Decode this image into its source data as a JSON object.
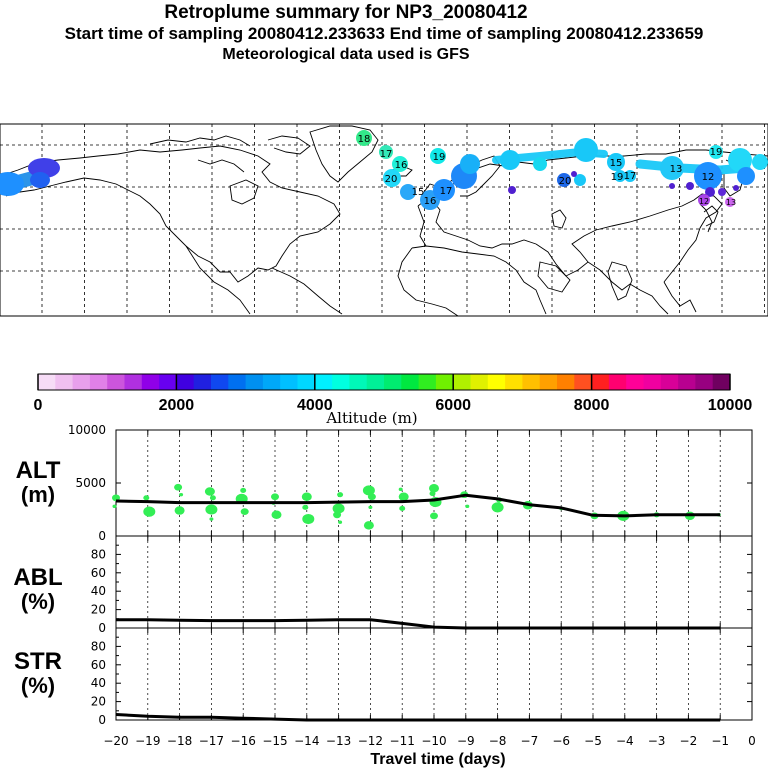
{
  "header": {
    "title": "Retroplume summary for NP3_20080412",
    "sampling_line": "Start time of sampling 20080412.233633     End time of sampling 20080412.233659",
    "met_line": "Meteorological data used is GFS"
  },
  "colorbar": {
    "label": "Altitude (m)",
    "ticks": [
      "0",
      "2000",
      "4000",
      "6000",
      "8000",
      "10000"
    ],
    "colors": [
      "#f6dcf6",
      "#f0c0f0",
      "#e8a0ec",
      "#e080e8",
      "#cc55dd",
      "#b030e0",
      "#9000e8",
      "#6800f0",
      "#4000e0",
      "#2020e0",
      "#1048f0",
      "#0070f0",
      "#0090f0",
      "#00a8f8",
      "#00c0ff",
      "#00d8ff",
      "#00f0ff",
      "#00ffe0",
      "#00f8b8",
      "#00f098",
      "#00ec70",
      "#00e840",
      "#30ee20",
      "#70f000",
      "#b0f000",
      "#e0f000",
      "#ffff00",
      "#ffe000",
      "#ffc000",
      "#ffa000",
      "#ff8000",
      "#ff5020",
      "#ff2020",
      "#ff0070",
      "#ff0098",
      "#f000a0",
      "#d80098",
      "#b80090",
      "#980080",
      "#700060"
    ]
  },
  "map": {
    "particle_labels": [
      {
        "text": "18",
        "color": "#3ae88a"
      },
      {
        "text": "17",
        "color": "#33e8b0"
      },
      {
        "text": "16",
        "color": "#22f0d0"
      },
      {
        "text": "19",
        "color": "#11e8e8"
      },
      {
        "text": "20",
        "color": "#22d8f8"
      },
      {
        "text": "15",
        "color": "#2288f0"
      },
      {
        "text": "17",
        "color": "#1e90ff"
      },
      {
        "text": "16",
        "color": "#30a0f8"
      },
      {
        "text": "20",
        "color": "#1e68e8"
      },
      {
        "text": "15",
        "color": "#18c8f8"
      },
      {
        "text": "19",
        "color": "#18c8f8"
      },
      {
        "text": "17",
        "color": "#18c8f8"
      },
      {
        "text": "13",
        "color": "#22d8f8"
      },
      {
        "text": "12",
        "color": "#22d8f8"
      },
      {
        "text": "19",
        "color": "#22e8f0"
      },
      {
        "text": "12",
        "color": "#aa44e8"
      },
      {
        "text": "13",
        "color": "#cc66ee"
      }
    ]
  },
  "chart_data": [
    {
      "type": "line",
      "panel": "ALT",
      "ylabel": "ALT\n(m)",
      "ylabel_line1": "ALT",
      "ylabel_line2": "(m)",
      "ylim": [
        0,
        10000
      ],
      "yticks": [
        "0",
        "5000",
        "10000"
      ],
      "xlim": [
        -20,
        0
      ],
      "x": [
        -20,
        -19,
        -18,
        -17,
        -16,
        -15,
        -14,
        -13,
        -12,
        -11,
        -10,
        -9,
        -8,
        -7,
        -6,
        -5,
        -4,
        -3,
        -2,
        -1
      ],
      "values": [
        3300,
        3250,
        3150,
        3150,
        3150,
        3150,
        3150,
        3200,
        3250,
        3250,
        3400,
        3850,
        3500,
        2950,
        2650,
        1950,
        1900,
        2000,
        2000,
        2000
      ],
      "scatter_points": [
        {
          "x": -20,
          "y": 2800
        },
        {
          "x": -20,
          "y": 3600
        },
        {
          "x": -19,
          "y": 2300
        },
        {
          "x": -19,
          "y": 3600
        },
        {
          "x": -18,
          "y": 2400
        },
        {
          "x": -18,
          "y": 3900
        },
        {
          "x": -18,
          "y": 4600
        },
        {
          "x": -17,
          "y": 2500
        },
        {
          "x": -17,
          "y": 3600
        },
        {
          "x": -17,
          "y": 4200
        },
        {
          "x": -17,
          "y": 1600
        },
        {
          "x": -16,
          "y": 2300
        },
        {
          "x": -16,
          "y": 3500
        },
        {
          "x": -16,
          "y": 4300
        },
        {
          "x": -15,
          "y": 2000
        },
        {
          "x": -15,
          "y": 3100
        },
        {
          "x": -15,
          "y": 3700
        },
        {
          "x": -14,
          "y": 1600
        },
        {
          "x": -14,
          "y": 2700
        },
        {
          "x": -14,
          "y": 3700
        },
        {
          "x": -13,
          "y": 1300
        },
        {
          "x": -13,
          "y": 2000
        },
        {
          "x": -13,
          "y": 2600
        },
        {
          "x": -13,
          "y": 3900
        },
        {
          "x": -12,
          "y": 1000
        },
        {
          "x": -12,
          "y": 2700
        },
        {
          "x": -12,
          "y": 3700
        },
        {
          "x": -12,
          "y": 4300
        },
        {
          "x": -11,
          "y": 2600
        },
        {
          "x": -11,
          "y": 3700
        },
        {
          "x": -11,
          "y": 4400
        },
        {
          "x": -10,
          "y": 1900
        },
        {
          "x": -10,
          "y": 3200
        },
        {
          "x": -10,
          "y": 4000
        },
        {
          "x": -10,
          "y": 4500
        },
        {
          "x": -9,
          "y": 2800
        },
        {
          "x": -9,
          "y": 3900
        },
        {
          "x": -8,
          "y": 2700
        },
        {
          "x": -8,
          "y": 3400
        },
        {
          "x": -7,
          "y": 2900
        },
        {
          "x": -6,
          "y": 2600
        },
        {
          "x": -5,
          "y": 1900
        },
        {
          "x": -4,
          "y": 1900
        },
        {
          "x": -3,
          "y": 2000
        },
        {
          "x": -2,
          "y": 1900
        },
        {
          "x": -1,
          "y": 2000
        }
      ]
    },
    {
      "type": "line",
      "panel": "ABL",
      "ylabel_line1": "ABL",
      "ylabel_line2": "(%)",
      "ylim": [
        0,
        100
      ],
      "yticks": [
        "0",
        "20",
        "40",
        "60",
        "80"
      ],
      "xlim": [
        -20,
        0
      ],
      "x": [
        -20,
        -19,
        -18,
        -17,
        -16,
        -15,
        -14,
        -13,
        -12,
        -11,
        -10,
        -9,
        -8,
        -7,
        -6,
        -5,
        -4,
        -3,
        -2,
        -1
      ],
      "values": [
        9,
        9,
        8.5,
        8,
        8,
        8,
        8.5,
        9,
        9,
        5,
        1,
        0,
        0,
        0,
        0,
        0,
        0,
        0,
        0,
        0
      ]
    },
    {
      "type": "line",
      "panel": "STR",
      "ylabel_line1": "STR",
      "ylabel_line2": "(%)",
      "ylim": [
        0,
        100
      ],
      "yticks": [
        "0",
        "20",
        "40",
        "60",
        "80"
      ],
      "xlim": [
        -20,
        0
      ],
      "xlabel": "Travel time (days)",
      "xtick_labels": [
        "−20",
        "−19",
        "−18",
        "−17",
        "−16",
        "−15",
        "−14",
        "−13",
        "−12",
        "−11",
        "−10",
        "−9",
        "−8",
        "−7",
        "−6",
        "−5",
        "−4",
        "−3",
        "−2",
        "−1",
        "0"
      ],
      "x": [
        -20,
        -19,
        -18,
        -17,
        -16,
        -15,
        -14,
        -13,
        -12,
        -11,
        -10,
        -9,
        -8,
        -7,
        -6,
        -5,
        -4,
        -3,
        -2,
        -1
      ],
      "values": [
        6,
        4,
        3,
        3,
        2,
        1,
        0,
        0,
        0,
        0,
        0,
        0,
        0,
        0,
        0,
        0,
        0,
        0,
        0,
        0
      ]
    }
  ]
}
